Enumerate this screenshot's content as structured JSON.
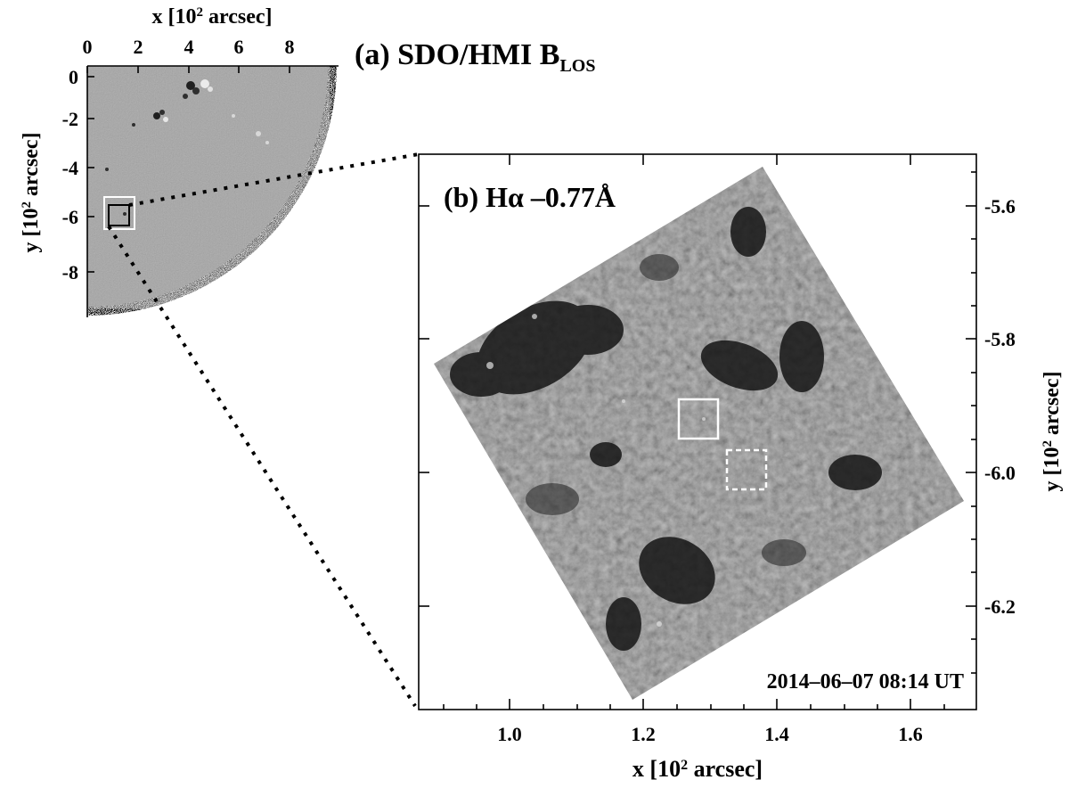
{
  "panel_a": {
    "title": "(a) SDO/HMI B",
    "title_sub": "LOS",
    "x_label_pre": "x [10",
    "x_label_sup": "2",
    "x_label_post": " arcsec]",
    "y_label_pre": "y [10",
    "y_label_sup": "2",
    "y_label_post": " arcsec]",
    "x_ticks": [
      "0",
      "2",
      "4",
      "6",
      "8"
    ],
    "y_ticks": [
      "0",
      "-2",
      "-4",
      "-6",
      "-8"
    ]
  },
  "panel_b": {
    "title": "(b) Hα –0.77Å",
    "timestamp": "2014–06–07 08:14 UT",
    "x_label_pre": "x [10",
    "x_label_sup": "2",
    "x_label_post": " arcsec]",
    "y_label_pre": "y [10",
    "y_label_sup": "2",
    "y_label_post": " arcsec]",
    "x_ticks": [
      "1.0",
      "1.2",
      "1.4",
      "1.6"
    ],
    "y_ticks": [
      "-5.6",
      "-5.8",
      "-6.0",
      "-6.2"
    ]
  },
  "colors": {
    "magnetogram_gray": "#8a8a8a",
    "halpha_gray": "#6f6f6f",
    "box_white": "#ffffff",
    "box_black": "#000000"
  }
}
